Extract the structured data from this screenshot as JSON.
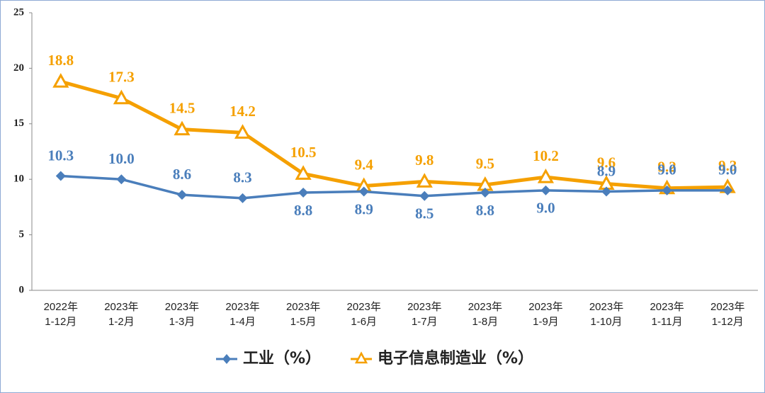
{
  "chart_data": {
    "type": "line",
    "categories": [
      [
        "2022年",
        "1-12月"
      ],
      [
        "2023年",
        "1-2月"
      ],
      [
        "2023年",
        "1-3月"
      ],
      [
        "2023年",
        "1-4月"
      ],
      [
        "2023年",
        "1-5月"
      ],
      [
        "2023年",
        "1-6月"
      ],
      [
        "2023年",
        "1-7月"
      ],
      [
        "2023年",
        "1-8月"
      ],
      [
        "2023年",
        "1-9月"
      ],
      [
        "2023年",
        "1-10月"
      ],
      [
        "2023年",
        "1-11月"
      ],
      [
        "2023年",
        "1-12月"
      ]
    ],
    "series": [
      {
        "name": "工业（%）",
        "color": "#4a7ebb",
        "marker": "diamond",
        "values": [
          10.3,
          10.0,
          8.6,
          8.3,
          8.8,
          8.9,
          8.5,
          8.8,
          9.0,
          8.9,
          9.0,
          9.0
        ],
        "value_labels": [
          "10.3",
          "10.0",
          "8.6",
          "8.3",
          "8.8",
          "8.9",
          "8.5",
          "8.8",
          "9.0",
          "8.9",
          "9.0",
          "9.0"
        ]
      },
      {
        "name": "电子信息制造业（%）",
        "color": "#f5a000",
        "marker": "triangle",
        "values": [
          18.8,
          17.3,
          14.5,
          14.2,
          10.5,
          9.4,
          9.8,
          9.5,
          10.2,
          9.6,
          9.2,
          9.3
        ],
        "value_labels": [
          "18.8",
          "17.3",
          "14.5",
          "14.2",
          "10.5",
          "9.4",
          "9.8",
          "9.5",
          "10.2",
          "9.6",
          "9.2",
          "9.3"
        ]
      }
    ],
    "ylim": [
      0,
      25
    ],
    "yticks": [
      0,
      5,
      10,
      15,
      20,
      25
    ],
    "grid": false,
    "legend": "bottom"
  }
}
